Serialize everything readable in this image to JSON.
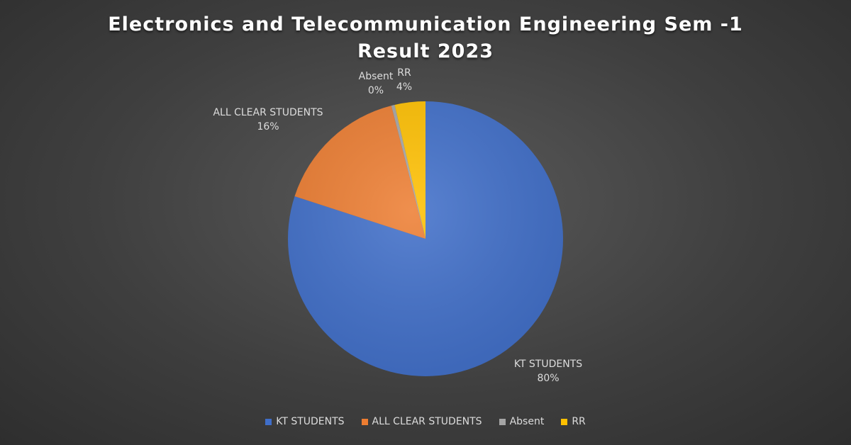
{
  "chart_data": {
    "type": "pie",
    "title": "Electronics and Telecommunication Engineering Sem -1 Result 2023",
    "slices": [
      {
        "name": "KT STUDENTS",
        "percent": 80,
        "percent_label": "80%",
        "color": "#3f6ec9"
      },
      {
        "name": "ALL CLEAR STUDENTS",
        "percent": 16,
        "percent_label": "16%",
        "color": "#ed7d31"
      },
      {
        "name": "Absent",
        "percent": 0.4,
        "percent_label": "0%",
        "color": "#a5a5a5"
      },
      {
        "name": "RR",
        "percent": 3.6,
        "percent_label": "4%",
        "color": "#ffc000"
      }
    ],
    "legend_position": "bottom",
    "data_labels": "category name and percentage"
  }
}
